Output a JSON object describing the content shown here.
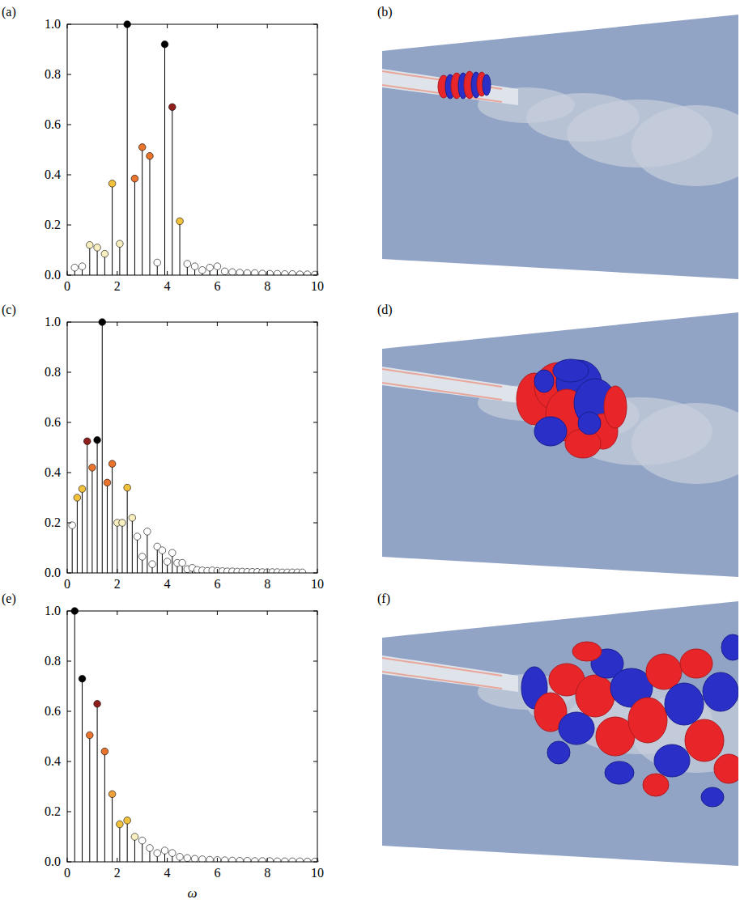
{
  "chart_data": [
    {
      "type": "stem",
      "title": "(a)",
      "x": [
        0.3,
        0.6,
        0.9,
        1.2,
        1.5,
        1.8,
        2.1,
        2.4,
        2.7,
        3.0,
        3.3,
        3.6,
        3.9,
        4.2,
        4.5,
        4.8,
        5.1,
        5.4,
        5.7,
        6.0,
        6.3,
        6.6,
        6.9,
        7.2,
        7.5,
        7.8,
        8.1,
        8.4,
        8.7,
        9.0,
        9.3,
        9.6,
        9.9
      ],
      "values": [
        0.03,
        0.035,
        0.12,
        0.11,
        0.085,
        0.365,
        0.125,
        1.0,
        0.385,
        0.51,
        0.475,
        0.05,
        0.92,
        0.67,
        0.215,
        0.045,
        0.035,
        0.02,
        0.03,
        0.035,
        0.015,
        0.012,
        0.01,
        0.008,
        0.008,
        0.006,
        0.005,
        0.005,
        0.004,
        0.004,
        0.003,
        0.003,
        0.002
      ],
      "colors": [
        "#ffffff",
        "#ffffff",
        "#f8efc0",
        "#f8efc0",
        "#f8efc0",
        "#f3c23d",
        "#f8efc0",
        "#000000",
        "#e8742e",
        "#e8742e",
        "#e8742e",
        "#ffffff",
        "#000000",
        "#8e1f1a",
        "#f3c23d",
        "#ffffff",
        "#ffffff",
        "#ffffff",
        "#ffffff",
        "#ffffff",
        "#ffffff",
        "#ffffff",
        "#ffffff",
        "#ffffff",
        "#ffffff",
        "#ffffff",
        "#ffffff",
        "#ffffff",
        "#ffffff",
        "#ffffff",
        "#ffffff",
        "#ffffff",
        "#ffffff"
      ],
      "xlim": [
        0,
        10
      ],
      "xticks": [
        0,
        2,
        4,
        6,
        8,
        10
      ],
      "ylim": [
        0,
        1
      ],
      "yticks": [
        {
          "value": 0,
          "label": "0.0"
        },
        {
          "value": 0.2,
          "label": "0.2"
        },
        {
          "value": 0.4,
          "label": "0.4"
        },
        {
          "value": 0.6,
          "label": "0.6"
        },
        {
          "value": 0.8,
          "label": "0.8"
        },
        {
          "value": 1,
          "label": "1.0"
        }
      ]
    },
    {
      "type": "stem",
      "title": "(c)",
      "x": [
        0.2,
        0.4,
        0.6,
        0.8,
        1.0,
        1.2,
        1.4,
        1.6,
        1.8,
        2.0,
        2.2,
        2.4,
        2.6,
        2.8,
        3.0,
        3.2,
        3.4,
        3.6,
        3.8,
        4.0,
        4.2,
        4.4,
        4.6,
        4.8,
        5.0,
        5.2,
        5.4,
        5.6,
        5.8,
        6.0,
        6.2,
        6.4,
        6.6,
        6.8,
        7.0,
        7.2,
        7.4,
        7.6,
        7.8,
        8.0,
        8.2,
        8.4,
        8.6,
        8.8,
        9.0,
        9.2,
        9.4
      ],
      "values": [
        0.19,
        0.3,
        0.335,
        0.525,
        0.42,
        0.53,
        1.0,
        0.36,
        0.435,
        0.2,
        0.2,
        0.34,
        0.22,
        0.145,
        0.065,
        0.165,
        0.035,
        0.105,
        0.09,
        0.045,
        0.08,
        0.04,
        0.04,
        0.015,
        0.02,
        0.012,
        0.01,
        0.008,
        0.01,
        0.008,
        0.007,
        0.006,
        0.006,
        0.005,
        0.005,
        0.004,
        0.004,
        0.004,
        0.003,
        0.003,
        0.003,
        0.003,
        0.002,
        0.002,
        0.002,
        0.002,
        0.002
      ],
      "colors": [
        "#ffffff",
        "#f3c23d",
        "#f3c23d",
        "#8e1f1a",
        "#e8742e",
        "#000000",
        "#000000",
        "#e8742e",
        "#e8742e",
        "#f8efc0",
        "#f8efc0",
        "#f3c23d",
        "#f8efc0",
        "#ffffff",
        "#ffffff",
        "#ffffff",
        "#ffffff",
        "#ffffff",
        "#ffffff",
        "#ffffff",
        "#ffffff",
        "#ffffff",
        "#ffffff",
        "#ffffff",
        "#ffffff",
        "#ffffff",
        "#ffffff",
        "#ffffff",
        "#ffffff",
        "#ffffff",
        "#ffffff",
        "#ffffff",
        "#ffffff",
        "#ffffff",
        "#ffffff",
        "#ffffff",
        "#ffffff",
        "#ffffff",
        "#ffffff",
        "#ffffff",
        "#ffffff",
        "#ffffff",
        "#ffffff",
        "#ffffff",
        "#ffffff",
        "#ffffff",
        "#ffffff"
      ],
      "xlim": [
        0,
        10
      ],
      "xticks": [
        0,
        2,
        4,
        6,
        8,
        10
      ],
      "ylim": [
        0,
        1
      ],
      "yticks": [
        {
          "value": 0,
          "label": "0.0"
        },
        {
          "value": 0.2,
          "label": "0.2"
        },
        {
          "value": 0.4,
          "label": "0.4"
        },
        {
          "value": 0.6,
          "label": "0.6"
        },
        {
          "value": 0.8,
          "label": "0.8"
        },
        {
          "value": 1,
          "label": "1.0"
        }
      ]
    },
    {
      "type": "stem",
      "title": "(e)",
      "x_label": "ω",
      "x": [
        0.3,
        0.6,
        0.9,
        1.2,
        1.5,
        1.8,
        2.1,
        2.4,
        2.7,
        3.0,
        3.3,
        3.6,
        3.9,
        4.2,
        4.5,
        4.8,
        5.1,
        5.4,
        5.7,
        6.0,
        6.3,
        6.6,
        6.9,
        7.2,
        7.5,
        7.8,
        8.1,
        8.4,
        8.7,
        9.0,
        9.3,
        9.6,
        9.9
      ],
      "values": [
        1.0,
        0.73,
        0.505,
        0.63,
        0.44,
        0.27,
        0.15,
        0.165,
        0.1,
        0.085,
        0.055,
        0.035,
        0.045,
        0.035,
        0.02,
        0.015,
        0.012,
        0.01,
        0.008,
        0.007,
        0.006,
        0.005,
        0.004,
        0.004,
        0.003,
        0.003,
        0.003,
        0.002,
        0.002,
        0.002,
        0.002,
        0.001,
        0.001
      ],
      "colors": [
        "#000000",
        "#000000",
        "#e8742e",
        "#8e1f1a",
        "#e8742e",
        "#f0a03a",
        "#f3c23d",
        "#f3c23d",
        "#f8efc0",
        "#ffffff",
        "#ffffff",
        "#ffffff",
        "#ffffff",
        "#ffffff",
        "#ffffff",
        "#ffffff",
        "#ffffff",
        "#ffffff",
        "#ffffff",
        "#ffffff",
        "#ffffff",
        "#ffffff",
        "#ffffff",
        "#ffffff",
        "#ffffff",
        "#ffffff",
        "#ffffff",
        "#ffffff",
        "#ffffff",
        "#ffffff",
        "#ffffff",
        "#ffffff",
        "#ffffff"
      ],
      "xlim": [
        0,
        10
      ],
      "xticks": [
        0,
        2,
        4,
        6,
        8,
        10
      ],
      "ylim": [
        0,
        1
      ],
      "yticks": [
        {
          "value": 0,
          "label": "0.0"
        },
        {
          "value": 0.2,
          "label": "0.2"
        },
        {
          "value": 0.4,
          "label": "0.4"
        },
        {
          "value": 0.6,
          "label": "0.6"
        },
        {
          "value": 0.8,
          "label": "0.8"
        },
        {
          "value": 1,
          "label": "1.0"
        }
      ]
    }
  ],
  "images": [
    {
      "label": "(b)"
    },
    {
      "label": "(d)"
    },
    {
      "label": "(f)"
    }
  ]
}
